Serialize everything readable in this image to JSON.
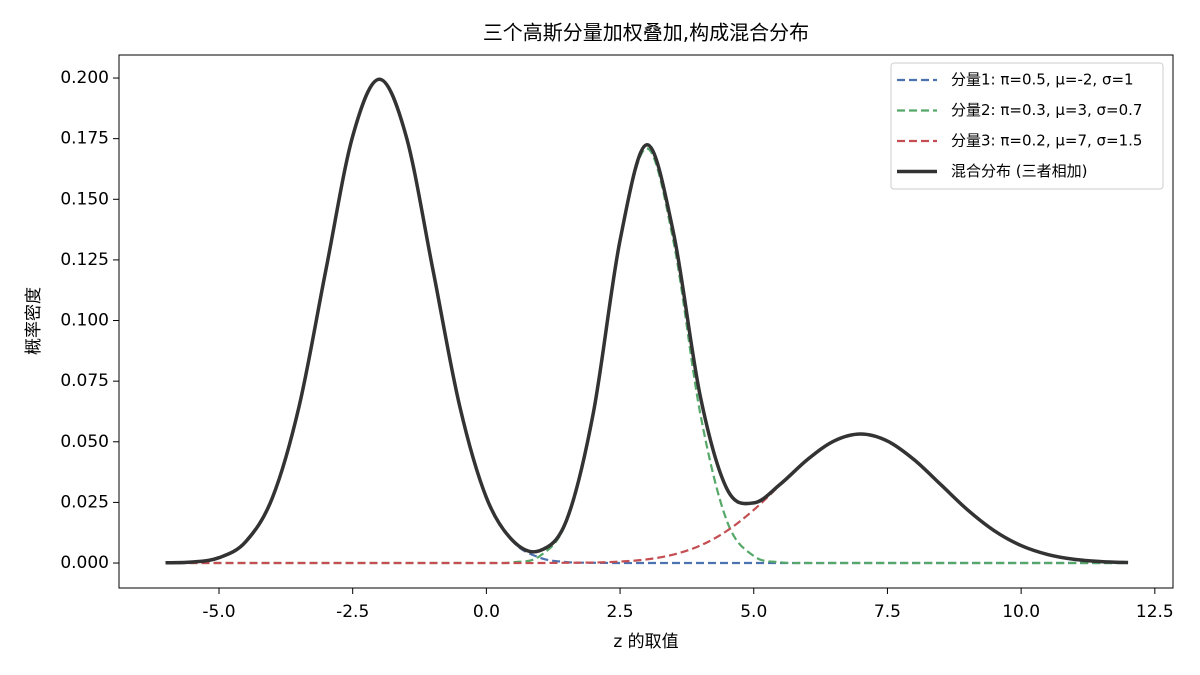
{
  "chart_data": {
    "type": "line",
    "title": "三个高斯分量加权叠加,构成混合分布",
    "x_label": "z 的取值",
    "y_label": "概率密度",
    "x": [
      -6,
      -5.5,
      -5,
      -4.5,
      -4,
      -3.5,
      -3,
      -2.5,
      -2,
      -1.5,
      -1,
      -0.5,
      0,
      0.5,
      1,
      1.5,
      2,
      2.5,
      3,
      3.5,
      4,
      4.5,
      5,
      5.5,
      6,
      6.5,
      7,
      7.5,
      8,
      8.5,
      9,
      9.5,
      10,
      10.5,
      11,
      11.5,
      12
    ],
    "series": [
      {
        "name": "分量1: π=0.5, μ=-2, σ=1",
        "color": "#4c72b0",
        "linestyle": "dashed",
        "values": [
          0.0001,
          0.0004,
          0.0022,
          0.0088,
          0.027,
          0.0648,
          0.121,
          0.176,
          0.1995,
          0.176,
          0.121,
          0.0648,
          0.027,
          0.0088,
          0.0022,
          0.0004,
          0.0001,
          0,
          0,
          0,
          0,
          0,
          0,
          0,
          0,
          0,
          0,
          0,
          0,
          0,
          0,
          0,
          0,
          0,
          0,
          0,
          0
        ]
      },
      {
        "name": "分量2: π=0.3, μ=3, σ=0.7",
        "color": "#55a868",
        "linestyle": "dashed",
        "values": [
          0,
          0,
          0,
          0,
          0,
          0,
          0,
          0,
          0,
          0,
          0,
          0,
          0,
          0.0003,
          0.0029,
          0.0172,
          0.0616,
          0.1325,
          0.171,
          0.1325,
          0.0616,
          0.0172,
          0.0029,
          0.0003,
          0,
          0,
          0,
          0,
          0,
          0,
          0,
          0,
          0,
          0,
          0,
          0,
          0
        ]
      },
      {
        "name": "分量3: π=0.2, μ=7, σ=1.5",
        "color": "#c44e52",
        "linestyle": "dashed",
        "values": [
          0,
          0,
          0,
          0,
          0,
          0,
          0,
          0,
          0,
          0,
          0,
          0,
          0,
          0,
          0,
          0.0001,
          0.0002,
          0.0006,
          0.0015,
          0.0035,
          0.0072,
          0.0133,
          0.0219,
          0.0323,
          0.0426,
          0.0503,
          0.0532,
          0.0503,
          0.0426,
          0.0323,
          0.0219,
          0.0133,
          0.0072,
          0.0035,
          0.0015,
          0.0006,
          0.0002
        ]
      },
      {
        "name": "混合分布 (三者相加)",
        "color": "#333333",
        "linestyle": "solid",
        "values": [
          0.0001,
          0.0004,
          0.0022,
          0.0088,
          0.027,
          0.0648,
          0.121,
          0.176,
          0.1995,
          0.176,
          0.121,
          0.0648,
          0.027,
          0.0091,
          0.0051,
          0.0177,
          0.0619,
          0.1331,
          0.1725,
          0.136,
          0.0688,
          0.0305,
          0.0248,
          0.0326,
          0.0426,
          0.0503,
          0.0532,
          0.0503,
          0.0426,
          0.0323,
          0.0219,
          0.0133,
          0.0072,
          0.0035,
          0.0015,
          0.0006,
          0.0002
        ]
      }
    ],
    "xlim": [
      -6.87,
      12.84
    ],
    "ylim": [
      -0.0103,
      0.2095
    ],
    "xticks": [
      {
        "value": -5,
        "label": "-5.0"
      },
      -2.5,
      {
        "value": 0,
        "label": "0.0"
      },
      2.5,
      {
        "value": 5,
        "label": "5.0"
      },
      7.5,
      {
        "value": 10,
        "label": "10.0"
      },
      12.5
    ],
    "yticks": [
      {
        "value": 0,
        "label": "0.000"
      },
      0.025,
      {
        "value": 0.05,
        "label": "0.050"
      },
      0.075,
      {
        "value": 0.1,
        "label": "0.100"
      },
      0.125,
      {
        "value": 0.15,
        "label": "0.150"
      },
      0.175,
      {
        "value": 0.2,
        "label": "0.200"
      }
    ],
    "grid": false,
    "legend": "upper right"
  }
}
